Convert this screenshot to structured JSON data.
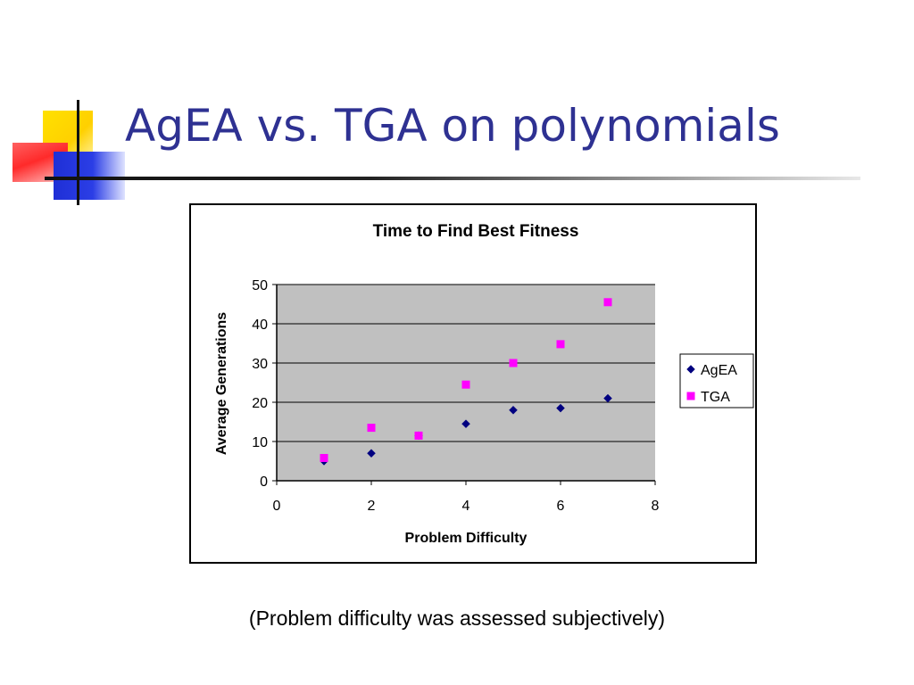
{
  "slide": {
    "title": "AgEA vs. TGA on polynomials",
    "caption": "(Problem difficulty was assessed subjectively)"
  },
  "colors": {
    "title": "#2e3192",
    "plot_bg": "#c0c0c0",
    "agea": "#000080",
    "tga": "#ff00ff"
  },
  "chart_data": {
    "type": "scatter",
    "title": "Time to Find Best Fitness",
    "xlabel": "Problem Difficulty",
    "ylabel": "Average Generations",
    "xlim": [
      0,
      8
    ],
    "ylim": [
      0,
      50
    ],
    "xticks": [
      0,
      2,
      4,
      6,
      8
    ],
    "yticks": [
      0,
      10,
      20,
      30,
      40,
      50
    ],
    "grid": "horizontal",
    "legend": "right",
    "series": [
      {
        "name": "AgEA",
        "marker": "diamond",
        "color": "#000080",
        "x": [
          1,
          2,
          3,
          4,
          5,
          6,
          7
        ],
        "y": [
          5,
          7,
          11.5,
          14.5,
          18,
          18.5,
          21
        ]
      },
      {
        "name": "TGA",
        "marker": "square",
        "color": "#ff00ff",
        "x": [
          1,
          2,
          3,
          4,
          5,
          6,
          7
        ],
        "y": [
          5.8,
          13.5,
          11.5,
          24.5,
          30,
          34.8,
          45.5
        ]
      }
    ]
  }
}
